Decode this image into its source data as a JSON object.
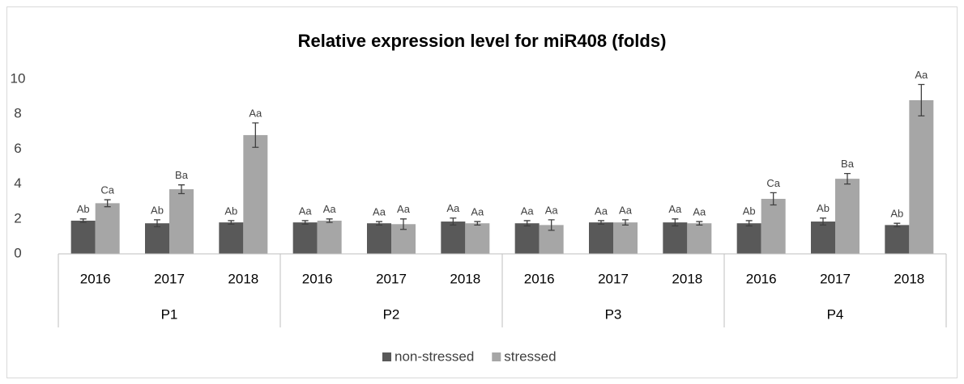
{
  "chart_data": {
    "type": "bar",
    "title": "Relative expression level for miR408 (folds)",
    "categories": [
      "2016",
      "2017",
      "2018",
      "2016",
      "2017",
      "2018",
      "2016",
      "2017",
      "2018",
      "2016",
      "2017",
      "2018"
    ],
    "groups": [
      "P1",
      "P2",
      "P3",
      "P4"
    ],
    "series": [
      {
        "name": "non-stressed",
        "color": "#595959",
        "values": [
          1.9,
          1.75,
          1.8,
          1.8,
          1.75,
          1.85,
          1.75,
          1.8,
          1.8,
          1.75,
          1.85,
          1.65
        ],
        "errors": [
          0.1,
          0.2,
          0.1,
          0.1,
          0.1,
          0.2,
          0.15,
          0.1,
          0.2,
          0.15,
          0.2,
          0.1
        ],
        "annotations": [
          "Ab",
          "Ab",
          "Ab",
          "Aa",
          "Aa",
          "Aa",
          "Aa",
          "Aa",
          "Aa",
          "Ab",
          "Ab",
          "Ab"
        ]
      },
      {
        "name": "stressed",
        "color": "#a6a6a6",
        "values": [
          2.9,
          3.7,
          6.8,
          1.9,
          1.7,
          1.75,
          1.65,
          1.8,
          1.75,
          3.15,
          4.3,
          8.8
        ],
        "errors": [
          0.2,
          0.25,
          0.7,
          0.1,
          0.3,
          0.1,
          0.3,
          0.15,
          0.1,
          0.35,
          0.3,
          0.9
        ],
        "annotations": [
          "Ca",
          "Ba",
          "Aa",
          "Aa",
          "Aa",
          "Aa",
          "Aa",
          "Aa",
          "Aa",
          "Ca",
          "Ba",
          "Aa"
        ]
      }
    ],
    "ylim": [
      0,
      10
    ],
    "yticks": [
      0,
      2,
      4,
      6,
      8,
      10
    ],
    "grid": false,
    "legend": "bottom"
  }
}
